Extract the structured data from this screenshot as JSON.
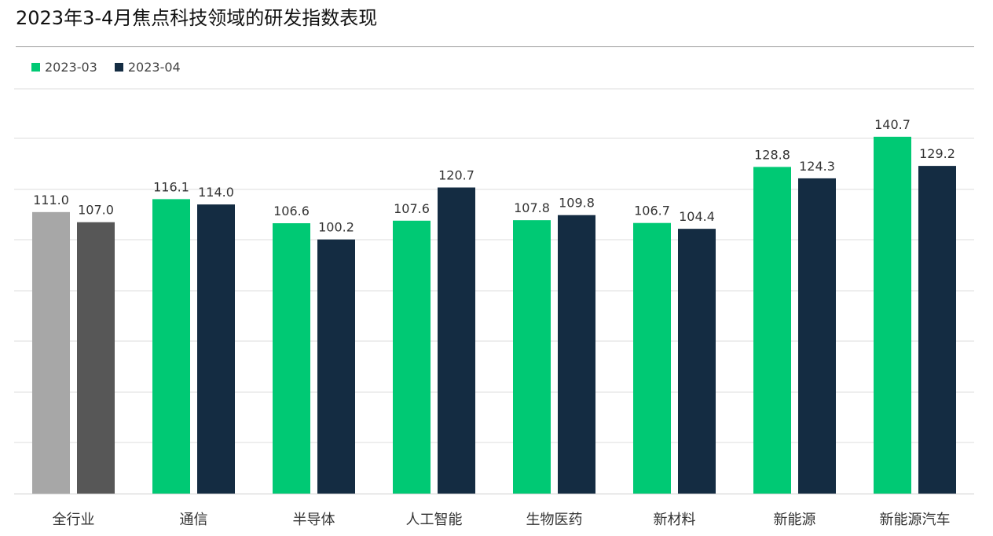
{
  "title": "2023年3-4月焦点科技领域的研发指数表现",
  "legend": [
    {
      "label": "2023-03",
      "color": "#00c974"
    },
    {
      "label": "2023-04",
      "color": "#142c42"
    }
  ],
  "colors": {
    "series1": "#00c974",
    "series2": "#142c42",
    "highlight1": "#a7a7a7",
    "highlight2": "#575757",
    "gridline": "#dcdcdc",
    "baseline": "#cfcfcf"
  },
  "chart_data": {
    "type": "bar",
    "categories": [
      "全行业",
      "通信",
      "半导体",
      "人工智能",
      "生物医药",
      "新材料",
      "新能源",
      "新能源汽车"
    ],
    "series": [
      {
        "name": "2023-03",
        "values": [
          111.0,
          116.1,
          106.6,
          107.6,
          107.8,
          106.7,
          128.8,
          140.7
        ]
      },
      {
        "name": "2023-04",
        "values": [
          107.0,
          114.0,
          100.2,
          120.7,
          109.8,
          104.4,
          124.3,
          129.2
        ]
      }
    ],
    "value_labels": [
      [
        "111.0",
        "116.1",
        "106.6",
        "107.6",
        "107.8",
        "106.7",
        "128.8",
        "140.7"
      ],
      [
        "107.0",
        "114.0",
        "100.2",
        "120.7",
        "109.8",
        "104.4",
        "124.3",
        "129.2"
      ]
    ],
    "highlighted_category": "全行业",
    "ylim": [
      0,
      140.7
    ],
    "grid": true,
    "legend_position": "top-left"
  }
}
